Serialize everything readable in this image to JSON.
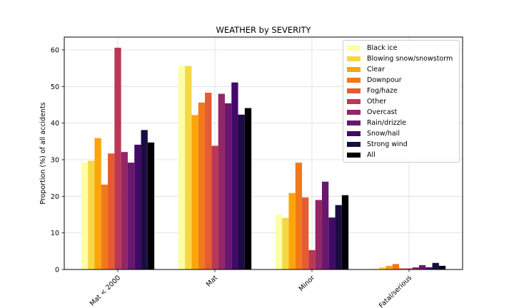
{
  "chart_data": {
    "type": "bar",
    "title": "WEATHER by SEVERITY",
    "xlabel": "",
    "ylabel": "Proportion (%) of all accidents",
    "ylim": [
      0,
      63.5
    ],
    "yticks": [
      0,
      10,
      20,
      30,
      40,
      50,
      60
    ],
    "grid": true,
    "legend_position": "top-right",
    "categories": [
      "Mat < 2000",
      "Mat",
      "Minor",
      "Fatal/serious"
    ],
    "series": [
      {
        "name": "Black ice",
        "color": "#fcffa4",
        "values": [
          29.2,
          55.6,
          15.0,
          0.3
        ]
      },
      {
        "name": "Blowing snow/snowstorm",
        "color": "#f6d746",
        "values": [
          29.7,
          55.6,
          14.1,
          0.6
        ]
      },
      {
        "name": "Clear",
        "color": "#fca50a",
        "values": [
          35.9,
          42.2,
          20.9,
          1.0
        ]
      },
      {
        "name": "Downpour",
        "color": "#f37819",
        "values": [
          23.2,
          45.6,
          29.2,
          1.5
        ]
      },
      {
        "name": "Fog/haze",
        "color": "#e55c30",
        "values": [
          31.7,
          48.3,
          19.7,
          0.3
        ]
      },
      {
        "name": "Other",
        "color": "#bc3754",
        "values": [
          60.6,
          33.8,
          5.3,
          0.3
        ]
      },
      {
        "name": "Overcast",
        "color": "#932667",
        "values": [
          32.1,
          48.0,
          19.0,
          0.6
        ]
      },
      {
        "name": "Rain/drizzle",
        "color": "#6a176e",
        "values": [
          29.2,
          45.4,
          24.0,
          1.2
        ]
      },
      {
        "name": "Snow/hail",
        "color": "#420a68",
        "values": [
          34.1,
          51.1,
          14.2,
          0.6
        ]
      },
      {
        "name": "Strong wind",
        "color": "#1b0c41",
        "values": [
          38.1,
          42.3,
          17.6,
          1.8
        ]
      },
      {
        "name": "All",
        "color": "#000004",
        "values": [
          34.7,
          44.1,
          20.3,
          1.0
        ]
      }
    ]
  }
}
